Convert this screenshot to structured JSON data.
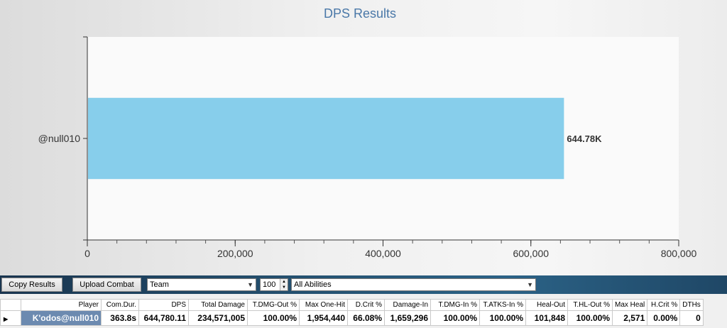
{
  "chart_data": {
    "type": "bar",
    "orientation": "horizontal",
    "title": "DPS Results",
    "categories": [
      "@null010"
    ],
    "values": [
      644780.11
    ],
    "data_labels": [
      "644.78K"
    ],
    "xlim": [
      0,
      800000
    ],
    "x_ticks": [
      0,
      200000,
      400000,
      600000,
      800000
    ],
    "x_tick_labels": [
      "0",
      "200,000",
      "400,000",
      "600,000",
      "800,000"
    ],
    "bar_color": "#87ceeb",
    "grid": false
  },
  "toolbar": {
    "copy_label": "Copy Results",
    "upload_label": "Upload Combat",
    "filter_value": "Team",
    "count_value": "100",
    "abilities_value": "All Abilities"
  },
  "table": {
    "headers": [
      "Player",
      "Com.Dur.",
      "DPS",
      "Total Damage",
      "T.DMG-Out %",
      "Max One-Hit",
      "D.Crit %",
      "Damage-In",
      "T.DMG-In %",
      "T.ATKS-In %",
      "Heal-Out",
      "T.HL-Out %",
      "Max Heal",
      "H.Crit %",
      "DTHs"
    ],
    "rows": [
      [
        "K'odos@null010",
        "363.8s",
        "644,780.11",
        "234,571,005",
        "100.00%",
        "1,954,440",
        "66.08%",
        "1,659,296",
        "100.00%",
        "100.00%",
        "101,848",
        "100.00%",
        "2,571",
        "0.00%",
        "0"
      ]
    ]
  }
}
